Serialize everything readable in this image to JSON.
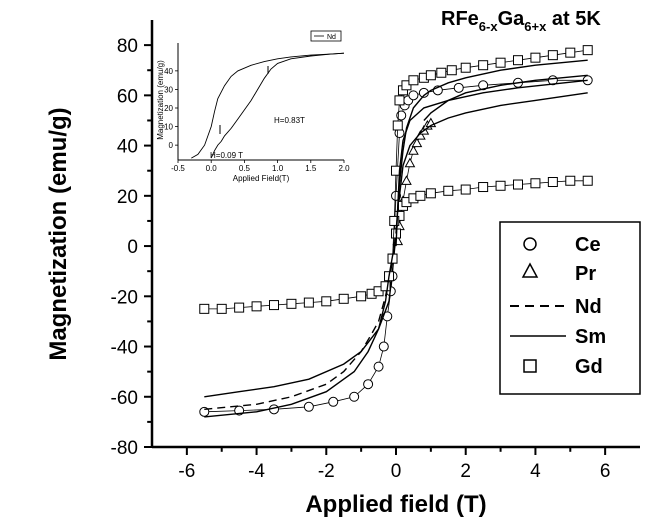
{
  "chart_data": [
    {
      "type": "line",
      "title": "",
      "title_parts": {
        "base": "RFe",
        "sub1": "6-x",
        "mid": "Ga",
        "sub2": "6+x",
        "tail": " at 5K"
      },
      "xlabel": "Applied field (T)",
      "ylabel": "Magnetization (emu/g)",
      "xlim": [
        -7,
        7
      ],
      "ylim": [
        -80,
        90
      ],
      "x_ticks": [
        -6,
        -4,
        -2,
        0,
        2,
        4,
        6
      ],
      "x_tick_labels": [
        "-6",
        "-4",
        "-2",
        "0",
        "2",
        "4",
        "6"
      ],
      "y_ticks": [
        -80,
        -60,
        -40,
        -20,
        0,
        20,
        40,
        60,
        80
      ],
      "y_tick_labels": [
        "-80",
        "-60",
        "-40",
        "-20",
        "0",
        "20",
        "40",
        "60",
        "80"
      ],
      "grid": false,
      "legend_position": "right",
      "legend": [
        {
          "label": "Ce",
          "marker": "circle",
          "line": "none"
        },
        {
          "label": "Pr",
          "marker": "triangle",
          "line": "none"
        },
        {
          "label": "Nd",
          "marker": "none",
          "line": "dashed"
        },
        {
          "label": "Sm",
          "marker": "none",
          "line": "solid"
        },
        {
          "label": "Gd",
          "marker": "square",
          "line": "none"
        }
      ],
      "series": [
        {
          "name": "Ce",
          "style": "circle",
          "x": [
            -5.5,
            -4.5,
            -3.5,
            -2.5,
            -1.8,
            -1.2,
            -0.8,
            -0.5,
            -0.35,
            -0.25,
            -0.15,
            -0.1,
            0,
            0.1,
            0.15,
            0.25,
            0.35,
            0.5,
            0.8,
            1.2,
            1.8,
            2.5,
            3.5,
            4.5,
            5.5
          ],
          "y": [
            -66,
            -65.5,
            -65,
            -64,
            -62,
            -60,
            -55,
            -48,
            -40,
            -28,
            -18,
            -12,
            20,
            45,
            52,
            56,
            58,
            60,
            61,
            62,
            63,
            64,
            65,
            66,
            66
          ]
        },
        {
          "name": "Pr",
          "style": "triangle",
          "x": [
            0.05,
            0.1,
            0.2,
            0.3,
            0.4,
            0.5,
            0.6,
            0.7,
            0.8,
            0.9,
            1.0
          ],
          "y": [
            2,
            8,
            18,
            26,
            33,
            38,
            41,
            44,
            46,
            48,
            49
          ]
        },
        {
          "name": "Nd",
          "style": "dashed",
          "x": [
            -5.5,
            -4,
            -3,
            -2,
            -1.5,
            -1,
            -0.7,
            -0.5,
            -0.3,
            -0.15,
            -0.08
          ],
          "y": [
            -65,
            -63,
            -60,
            -55,
            -50,
            -42,
            -35,
            -30,
            -20,
            -10,
            -3
          ]
        },
        {
          "name": "Sm",
          "style": "solid",
          "x": [
            -5.5,
            -4.5,
            -3.5,
            -2.5,
            -1.5,
            -1,
            -0.5,
            -0.2,
            -0.1,
            0,
            0.1,
            0.2,
            0.4,
            0.7,
            1,
            1.5,
            2,
            3,
            4,
            5.5
          ],
          "y": [
            -60,
            -58,
            -56,
            -53,
            -47,
            -42,
            -33,
            -22,
            -10,
            5,
            20,
            32,
            40,
            45,
            48,
            51,
            53,
            56,
            58,
            61
          ]
        },
        {
          "name": "Gd",
          "style": "square",
          "x": [
            -5.5,
            -5,
            -4.5,
            -4,
            -3.5,
            -3,
            -2.5,
            -2,
            -1.5,
            -1,
            -0.7,
            -0.5,
            -0.3,
            -0.2,
            -0.1,
            0,
            0.1,
            0.2,
            0.3,
            0.5,
            0.7,
            1,
            1.5,
            2,
            2.5,
            3,
            3.5,
            4,
            4.5,
            5,
            5.5
          ],
          "y": [
            -25,
            -25,
            -24.5,
            -24,
            -23.5,
            -23,
            -22.5,
            -22,
            -21,
            -20,
            -19,
            -18,
            -16,
            -12,
            -5,
            5,
            12,
            16,
            17.5,
            19,
            20,
            21,
            22,
            22.5,
            23.5,
            24,
            24.5,
            25,
            25.5,
            26,
            26
          ]
        },
        {
          "name": "",
          "style": "square",
          "x": [
            -0.1,
            -0.05,
            0,
            0.05,
            0.1,
            0.2,
            0.3,
            0.5,
            0.8,
            1,
            1.3,
            1.6,
            2,
            2.5,
            3,
            3.5,
            4,
            4.5,
            5,
            5.5
          ],
          "y": [
            -5,
            10,
            30,
            48,
            58,
            62,
            64,
            66,
            67,
            68,
            69,
            70,
            71,
            72,
            73,
            74,
            75,
            76,
            77,
            78
          ]
        },
        {
          "name": "",
          "style": "solid",
          "x": [
            0,
            0.1,
            0.2,
            0.3,
            0.5,
            0.8,
            1,
            1.5,
            2,
            3,
            4,
            5.5
          ],
          "y": [
            5,
            25,
            38,
            47,
            55,
            60,
            62,
            65,
            67,
            70,
            72,
            74
          ]
        },
        {
          "name": "",
          "style": "solid",
          "x": [
            -5.5,
            -4,
            -3,
            -2,
            -1.2,
            -0.8,
            -0.5,
            -0.3,
            -0.2,
            -0.1,
            0
          ],
          "y": [
            -68,
            -66,
            -63,
            -58,
            -50,
            -42,
            -33,
            -22,
            -12,
            -4,
            2
          ]
        },
        {
          "name": "",
          "style": "solid",
          "x": [
            0.8,
            1,
            1.5,
            2,
            3,
            4,
            5.5
          ],
          "y": [
            50,
            53,
            58,
            61,
            64,
            66,
            68
          ]
        },
        {
          "name": "",
          "style": "solid",
          "x": [
            0,
            0.05,
            0.1,
            0.2,
            0.4,
            0.8,
            1.5,
            2.5,
            3.5,
            5.5
          ],
          "y": [
            0,
            15,
            30,
            42,
            50,
            55,
            58,
            61,
            63,
            66
          ]
        }
      ]
    },
    {
      "type": "line",
      "title": "",
      "xlabel": "Applied Field(T)",
      "ylabel": "Magnetization (emu/g)",
      "xlim": [
        -0.5,
        2.0
      ],
      "ylim": [
        -8,
        55
      ],
      "x_ticks": [
        -0.5,
        0.0,
        0.5,
        1.0,
        1.5,
        2.0
      ],
      "x_tick_labels": [
        "-0.5",
        "0.0",
        "0.5",
        "1.0",
        "1.5",
        "2.0"
      ],
      "y_ticks": [
        0,
        10,
        20,
        30,
        40
      ],
      "y_tick_labels": [
        "0",
        "10",
        "20",
        "30",
        "40"
      ],
      "legend_position": "top-right",
      "legend": [
        {
          "label": "Nd",
          "line": "solid"
        }
      ],
      "annotations": [
        {
          "text": "H=0.83T",
          "x": 0.83,
          "y": 18
        },
        {
          "text": "H=0.09 T",
          "x": 0.09,
          "y": -5
        }
      ],
      "series": [
        {
          "name": "Nd",
          "style": "solid",
          "x": [
            -0.3,
            -0.2,
            -0.1,
            0,
            0.05,
            0.1,
            0.2,
            0.3,
            0.4,
            0.6,
            0.8,
            1.0,
            1.2,
            1.5,
            1.8,
            2.0
          ],
          "y": [
            -7,
            -5,
            0,
            10,
            18,
            25,
            32,
            37,
            40,
            43,
            45,
            46.5,
            47.5,
            48.5,
            49,
            49.5
          ]
        },
        {
          "name": "",
          "style": "solid",
          "x": [
            0,
            0.05,
            0.1,
            0.15,
            0.2,
            0.3,
            0.4,
            0.5,
            0.6,
            0.7,
            0.8,
            0.9,
            1.0,
            1.2,
            1.5,
            1.8,
            2.0
          ],
          "y": [
            -7,
            -3,
            0,
            2,
            5,
            9,
            14,
            19,
            24,
            30,
            36,
            41,
            44,
            46.5,
            48,
            49,
            49.5
          ]
        }
      ]
    }
  ]
}
